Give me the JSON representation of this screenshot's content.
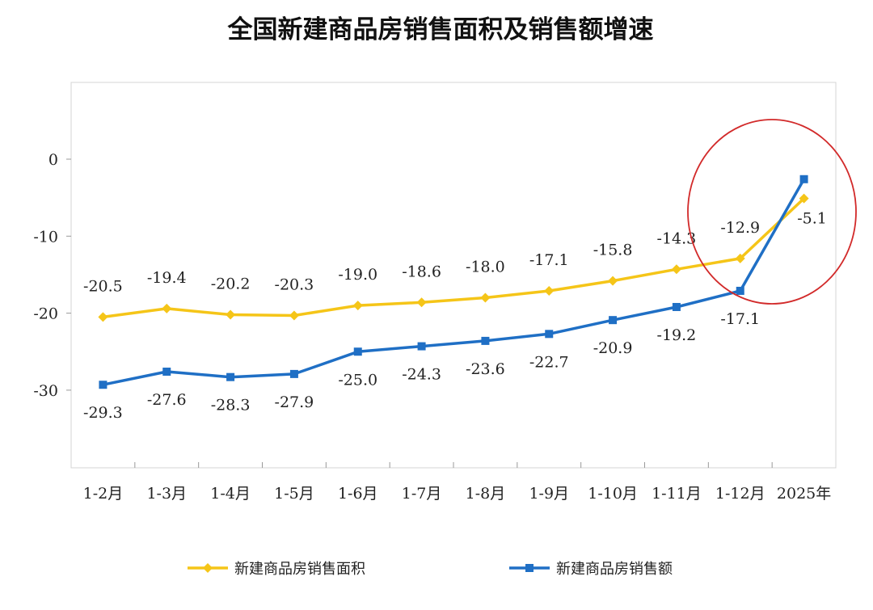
{
  "chart_data": {
    "type": "line",
    "title": "全国新建商品房销售面积及销售额增速",
    "categories": [
      "1-2月",
      "1-3月",
      "1-4月",
      "1-5月",
      "1-6月",
      "1-7月",
      "1-8月",
      "1-9月",
      "1-10月",
      "1-11月",
      "1-12月",
      "2025年"
    ],
    "series": [
      {
        "name": "新建商品房销售面积",
        "color": "#F5C518",
        "values": [
          -20.5,
          -19.4,
          -20.2,
          -20.3,
          -19.0,
          -18.6,
          -18.0,
          -17.1,
          -15.8,
          -14.3,
          -12.9,
          -5.1
        ]
      },
      {
        "name": "新建商品房销售额",
        "color": "#1F6FC5",
        "values": [
          -29.3,
          -27.6,
          -28.3,
          -27.9,
          -25.0,
          -24.3,
          -23.6,
          -22.7,
          -20.9,
          -19.2,
          -17.1,
          -2.6
        ]
      }
    ],
    "data_labels": [
      [
        "-20.5",
        "-19.4",
        "-20.2",
        "-20.3",
        "-19.0",
        "-18.6",
        "-18.0",
        "-17.1",
        "-15.8",
        "-14.3",
        "-12.9",
        "-5.1"
      ],
      [
        "-29.3",
        "-27.6",
        "-28.3",
        "-27.9",
        "-25.0",
        "-24.3",
        "-23.6",
        "-22.7",
        "-20.9",
        "-19.2",
        "-17.1",
        ""
      ]
    ],
    "yticks": [
      0,
      -10,
      -20,
      -30
    ],
    "ylim": [
      -40,
      10
    ],
    "legend_position": "bottom",
    "annotation": "red circle around the last two points"
  }
}
